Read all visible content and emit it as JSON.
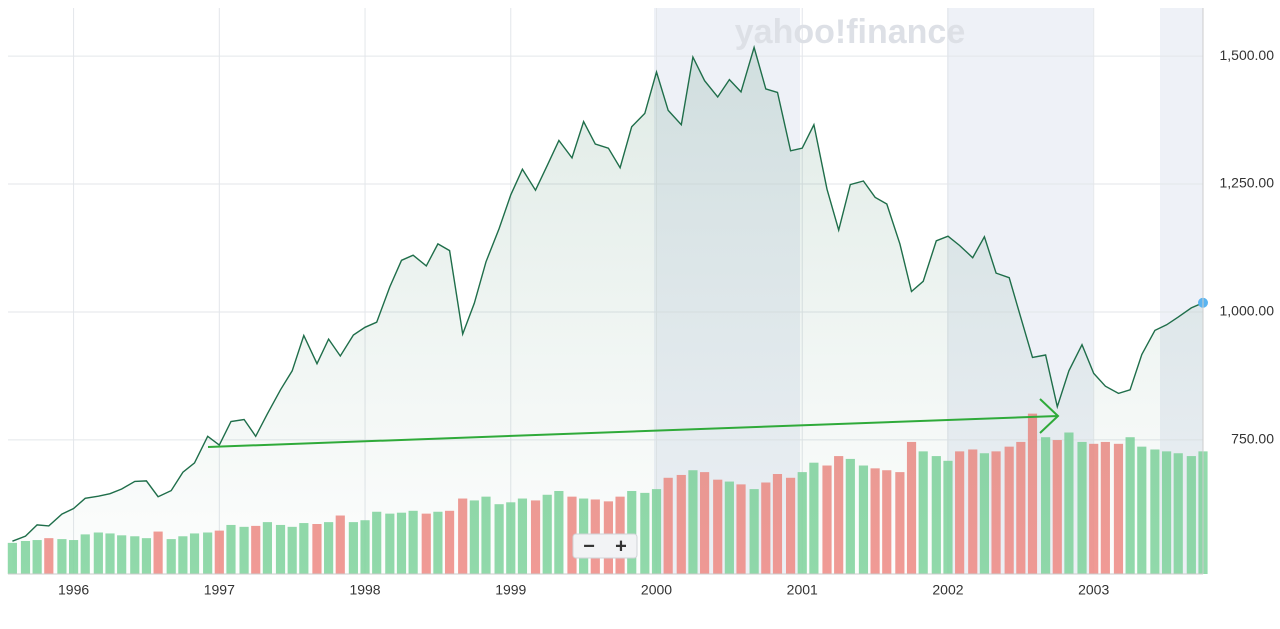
{
  "chart_data": {
    "type": "line",
    "watermark": "yahoo!finance",
    "zoom_out": "−",
    "zoom_in": "+",
    "x": [
      1995.58,
      1995.67,
      1995.75,
      1995.83,
      1995.92,
      1996.0,
      1996.08,
      1996.17,
      1996.25,
      1996.33,
      1996.42,
      1996.5,
      1996.58,
      1996.67,
      1996.75,
      1996.83,
      1996.92,
      1997.0,
      1997.08,
      1997.17,
      1997.25,
      1997.33,
      1997.42,
      1997.5,
      1997.58,
      1997.67,
      1997.75,
      1997.83,
      1997.92,
      1998.0,
      1998.08,
      1998.17,
      1998.25,
      1998.33,
      1998.42,
      1998.5,
      1998.58,
      1998.67,
      1998.75,
      1998.83,
      1998.92,
      1999.0,
      1999.08,
      1999.17,
      1999.25,
      1999.33,
      1999.42,
      1999.5,
      1999.58,
      1999.67,
      1999.75,
      1999.83,
      1999.92,
      2000.0,
      2000.08,
      2000.17,
      2000.25,
      2000.33,
      2000.42,
      2000.5,
      2000.58,
      2000.67,
      2000.75,
      2000.83,
      2000.92,
      2001.0,
      2001.08,
      2001.17,
      2001.25,
      2001.33,
      2001.42,
      2001.5,
      2001.58,
      2001.67,
      2001.75,
      2001.83,
      2001.92,
      2002.0,
      2002.08,
      2002.17,
      2002.25,
      2002.33,
      2002.42,
      2002.5,
      2002.58,
      2002.67,
      2002.75,
      2002.83,
      2002.92,
      2003.0,
      2003.08,
      2003.17,
      2003.25,
      2003.33,
      2003.42,
      2003.5,
      2003.58,
      2003.67,
      2003.75
    ],
    "series": [
      {
        "color": "#1f6e4a",
        "values": [
          552,
          562,
          584,
          582,
          605,
          616,
          636,
          640,
          645,
          654,
          669,
          670,
          639,
          651,
          687,
          705,
          757,
          740,
          786,
          790,
          757,
          801,
          848,
          885,
          954,
          899,
          947,
          914,
          955,
          970,
          980,
          1049,
          1101,
          1111,
          1090,
          1133,
          1120,
          957,
          1017,
          1098,
          1163,
          1229,
          1279,
          1238,
          1286,
          1335,
          1301,
          1372,
          1328,
          1320,
          1282,
          1362,
          1388,
          1469,
          1394,
          1366,
          1498,
          1452,
          1420,
          1454,
          1430,
          1517,
          1436,
          1429,
          1315,
          1320,
          1366,
          1240,
          1160,
          1249,
          1256,
          1224,
          1211,
          1133,
          1040,
          1060,
          1139,
          1148,
          1130,
          1106,
          1147,
          1076,
          1067,
          989,
          911,
          916,
          815,
          885,
          936,
          880,
          855,
          841,
          848,
          917,
          964,
          975,
          990,
          1008,
          1018
        ]
      },
      {
        "type": "bar",
        "axis": "y2",
        "up_color": "#7fd39c",
        "down_color": "#f08a84",
        "values": [
          0.33,
          0.35,
          0.36,
          0.38,
          0.37,
          0.36,
          0.42,
          0.44,
          0.43,
          0.41,
          0.4,
          0.38,
          0.45,
          0.37,
          0.4,
          0.43,
          0.44,
          0.46,
          0.52,
          0.5,
          0.51,
          0.55,
          0.52,
          0.5,
          0.54,
          0.53,
          0.55,
          0.62,
          0.55,
          0.57,
          0.66,
          0.64,
          0.65,
          0.67,
          0.64,
          0.66,
          0.67,
          0.8,
          0.78,
          0.82,
          0.74,
          0.76,
          0.8,
          0.78,
          0.84,
          0.88,
          0.82,
          0.8,
          0.79,
          0.77,
          0.82,
          0.88,
          0.86,
          0.9,
          1.02,
          1.05,
          1.1,
          1.08,
          1.0,
          0.98,
          0.95,
          0.9,
          0.97,
          1.06,
          1.02,
          1.08,
          1.18,
          1.15,
          1.25,
          1.22,
          1.15,
          1.12,
          1.1,
          1.08,
          1.4,
          1.3,
          1.25,
          1.2,
          1.3,
          1.32,
          1.28,
          1.3,
          1.35,
          1.4,
          1.7,
          1.45,
          1.42,
          1.5,
          1.4,
          1.38,
          1.4,
          1.38,
          1.45,
          1.35,
          1.32,
          1.3,
          1.28,
          1.25,
          1.3
        ]
      }
    ],
    "xlim": [
      1995.55,
      2003.75
    ],
    "xticks": [
      1996,
      1997,
      1998,
      1999,
      2000,
      2001,
      2002,
      2003
    ],
    "ylim": [
      488,
      1594
    ],
    "yticks": [
      {
        "value": 750,
        "label": "750.00"
      },
      {
        "value": 1000,
        "label": "1,000.00"
      },
      {
        "value": 1250,
        "label": "1,250.00"
      },
      {
        "value": 1500,
        "label": "1,500.00"
      }
    ],
    "y2lim": [
      0,
      6
    ],
    "grid": true,
    "last_point_color": "#5ab4f0"
  }
}
